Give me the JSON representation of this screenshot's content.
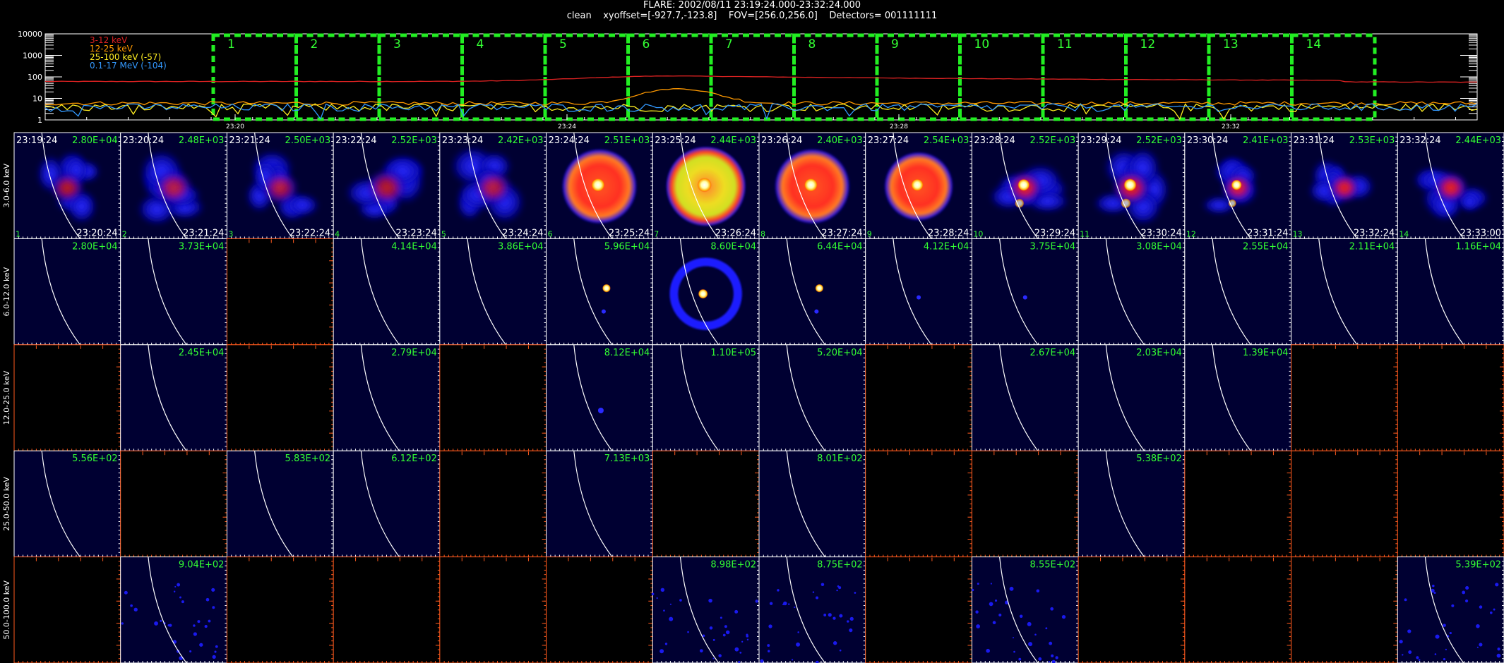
{
  "header": {
    "line1": "FLARE: 2002/08/11 23:19:24.000-23:32:24.000",
    "line2": "clean    xyoffset=[-927.7,-123.8]    FOV=[256.0,256.0]    Detectors= 001111111"
  },
  "colors": {
    "bg": "#000000",
    "panel": "#000032",
    "box": "#22ee22",
    "text_green": "#33ff33",
    "empty_axis": "#ff5a1e",
    "limb": "#ffffff"
  },
  "chart_data": [
    {
      "type": "line",
      "yscale": "log",
      "ylim": [
        1,
        10000
      ],
      "ytick_labels": [
        "1",
        "10",
        "100",
        "1000",
        "10000"
      ],
      "xtick_labels": [
        "23:20",
        "23:24",
        "23:28",
        "23:32"
      ],
      "series": [
        {
          "name": "3-12 keV",
          "color": "#dd2222",
          "shape": "rising-peak",
          "base": 70,
          "peak": 125
        },
        {
          "name": "12-25 keV",
          "color": "#ff9900",
          "shape": "flat-bump",
          "base": 6,
          "peak": 28
        },
        {
          "name": "25-100 keV (-57)",
          "color": "#ffee22",
          "shape": "noisy-flat",
          "base": 4,
          "peak": 6
        },
        {
          "name": "0.1-17 MeV (-104)",
          "color": "#3399ff",
          "shape": "noisy-flat",
          "base": 4,
          "peak": 6
        }
      ],
      "interval_labels": [
        "1",
        "2",
        "3",
        "4",
        "5",
        "6",
        "7",
        "8",
        "9",
        "10",
        "11",
        "12",
        "13",
        "14"
      ]
    },
    {
      "type": "heatmap",
      "energy_bands": [
        "3.0-6.0 keV",
        "6.0-12.0 keV",
        "12.0-25.0 keV",
        "25.0-50.0 keV",
        "50.0-100.0 keV"
      ],
      "start_times": [
        "23:19:24",
        "23:20:24",
        "23:21:24",
        "23:22:24",
        "23:23:24",
        "23:24:24",
        "23:25:24",
        "23:26:24",
        "23:27:24",
        "23:28:24",
        "23:29:24",
        "23:30:24",
        "23:31:24",
        "23:32:24"
      ],
      "end_times": [
        "23:20:24",
        "23:21:24",
        "23:22:24",
        "23:23:24",
        "23:24:24",
        "23:25:24",
        "23:26:24",
        "23:27:24",
        "23:28:24",
        "23:29:24",
        "23:30:24",
        "23:31:24",
        "23:32:24",
        "23:33:00"
      ],
      "maxima": [
        [
          "2.80E+04",
          "2.48E+03",
          "2.50E+03",
          "2.52E+03",
          "2.42E+03",
          "2.51E+03",
          "2.44E+03",
          "2.40E+03",
          "2.54E+03",
          "2.52E+03",
          "2.52E+03",
          "2.41E+03",
          "2.53E+03",
          "2.44E+03"
        ],
        [
          "2.80E+04",
          "3.73E+04",
          "",
          "4.14E+04",
          "3.86E+04",
          "5.96E+04",
          "8.60E+04",
          "6.44E+04",
          "4.12E+04",
          "3.75E+04",
          "3.08E+04",
          "2.55E+04",
          "2.11E+04",
          "1.16E+04"
        ],
        [
          "",
          "2.45E+04",
          "",
          "2.79E+04",
          "",
          "8.12E+04",
          "1.10E+05",
          "5.20E+04",
          "",
          "2.67E+04",
          "2.03E+04",
          "1.39E+04",
          "",
          ""
        ],
        [
          "5.56E+02",
          "",
          "5.83E+02",
          "6.12E+02",
          "",
          "7.13E+03",
          "",
          "8.01E+02",
          "",
          "",
          "5.38E+02",
          "",
          "",
          ""
        ],
        [
          "",
          "9.04E+02",
          "",
          "",
          "",
          "",
          "8.98E+02",
          "8.75E+02",
          "",
          "8.55E+02",
          "",
          "",
          "",
          "5.39E+02"
        ]
      ],
      "row0_sources": [
        {
          "kind": "blob",
          "r": 0.3
        },
        {
          "kind": "blob",
          "r": 0.34
        },
        {
          "kind": "blob",
          "r": 0.32
        },
        {
          "kind": "blob",
          "r": 0.36
        },
        {
          "kind": "blob",
          "r": 0.34
        },
        {
          "kind": "ring",
          "r": 0.36,
          "core": 1
        },
        {
          "kind": "ring",
          "r": 0.38,
          "core": 1,
          "yellow": 1
        },
        {
          "kind": "ring",
          "r": 0.36,
          "core": 1
        },
        {
          "kind": "ring",
          "r": 0.33,
          "core": 1
        },
        {
          "kind": "blob",
          "r": 0.32,
          "core": 1
        },
        {
          "kind": "blob",
          "r": 0.34,
          "core": 1
        },
        {
          "kind": "blob",
          "r": 0.28,
          "core": 1
        },
        {
          "kind": "blob",
          "r": 0.28
        },
        {
          "kind": "blob",
          "r": 0.3
        }
      ]
    }
  ]
}
